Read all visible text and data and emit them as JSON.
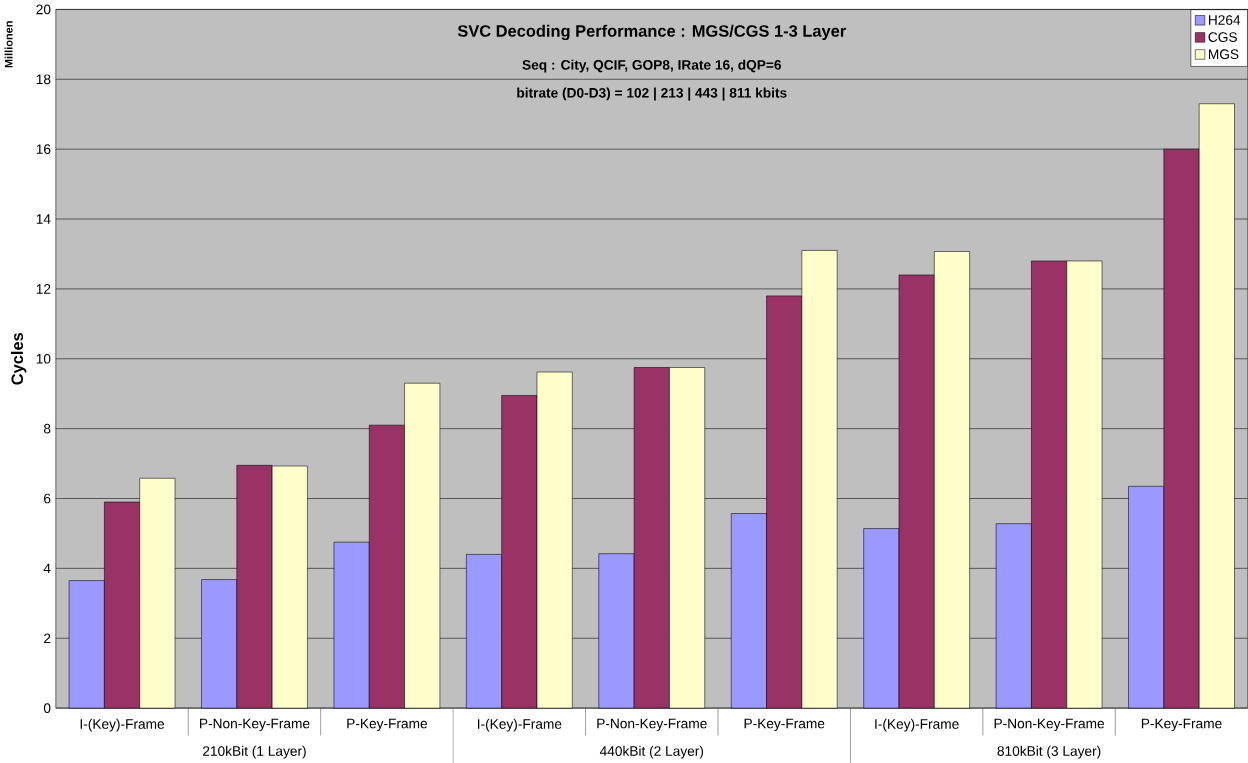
{
  "chart_data": {
    "type": "bar",
    "title": "SVC Decoding Performance : MGS/CGS 1-3 Layer",
    "subtitle": "Seq : City, QCIF, GOP8, IRate 16, dQP=6",
    "ylabel": "Cycles",
    "annotations": [
      "bitrate (D0-D3)  = 102 | 213 | 443 | 811 kbits",
      "Millionen",
      "210kBit (1 Layer)",
      "440kBit (2 Layer)",
      "810kBit (3 Layer)"
    ],
    "categories": [
      "I-(Key)-Frame",
      "P-Non-Key-Frame",
      "P-Key-Frame",
      "I-(Key)-Frame",
      "P-Non-Key-Frame",
      "P-Key-Frame",
      "I-(Key)-Frame",
      "P-Non-Key-Frame",
      "P-Key-Frame"
    ],
    "series": [
      {
        "name": "H264",
        "color": "#9999ff",
        "values": [
          3.65,
          3.68,
          4.75,
          4.4,
          4.42,
          5.57,
          5.14,
          5.28,
          6.35
        ]
      },
      {
        "name": "CGS",
        "color": "#993366",
        "values": [
          5.9,
          6.95,
          8.1,
          8.95,
          9.75,
          11.8,
          12.4,
          12.8,
          16.0
        ]
      },
      {
        "name": "MGS",
        "color": "#ffffcc",
        "values": [
          6.58,
          6.93,
          9.3,
          9.62,
          9.75,
          13.1,
          13.07,
          12.8,
          17.3
        ]
      }
    ],
    "ylim": [
      0,
      20
    ],
    "yticks": [
      0,
      2,
      4,
      6,
      8,
      10,
      12,
      14,
      16,
      18,
      20
    ],
    "grid": "y",
    "legend": "top right"
  }
}
